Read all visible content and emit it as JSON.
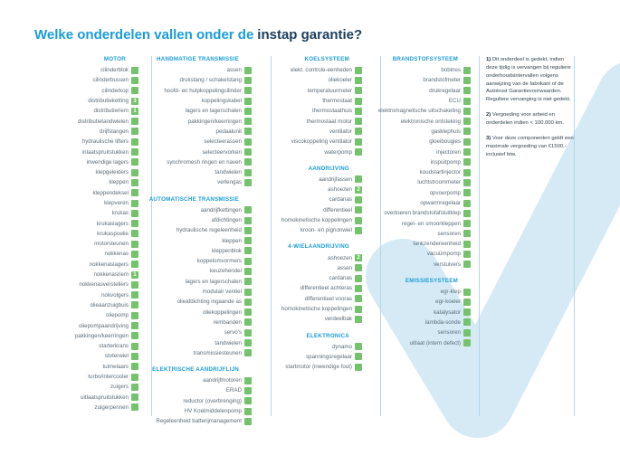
{
  "title": {
    "prefix": "Welke onderdelen vallen onder de",
    "highlight": "instap garantie?"
  },
  "colors": {
    "accent_blue": "#1b9cd8",
    "title_dark": "#1c3e5e",
    "covered_green": "#74c36c",
    "divider_blue": "#b5d7e8",
    "watermark_blue": "#d5eaf5",
    "item_text": "#5b6e7a"
  },
  "columns": [
    {
      "sections": [
        {
          "title": "MOTOR",
          "items": [
            {
              "label": "cilinderblok"
            },
            {
              "label": "cilinderbussen"
            },
            {
              "label": "cilinderkop"
            },
            {
              "label": "distributieketting",
              "note": "3"
            },
            {
              "label": "distributieriem",
              "note": "1"
            },
            {
              "label": "distributietandwielen"
            },
            {
              "label": "drijfstangen"
            },
            {
              "label": "hydraulische lifters"
            },
            {
              "label": "inlaatspruitstukken"
            },
            {
              "label": "inwendige lagers"
            },
            {
              "label": "klepgeleiders"
            },
            {
              "label": "kleppen"
            },
            {
              "label": "kleppendeksel"
            },
            {
              "label": "klepveren"
            },
            {
              "label": "krukas"
            },
            {
              "label": "krukaslagers"
            },
            {
              "label": "krukaspoelie"
            },
            {
              "label": "motorsteunen"
            },
            {
              "label": "nokkenas"
            },
            {
              "label": "nokkenaslagers"
            },
            {
              "label": "nokkenasriem",
              "note": "1"
            },
            {
              "label": "nokkenasverstellers"
            },
            {
              "label": "nokvolgers"
            },
            {
              "label": "olieaanzuigbuis"
            },
            {
              "label": "oliepomp"
            },
            {
              "label": "oliepompaandrijving"
            },
            {
              "label": "pakkingen/keerringen"
            },
            {
              "label": "starterkrans"
            },
            {
              "label": "stoterwiel"
            },
            {
              "label": "tuimelaars"
            },
            {
              "label": "turbo/intercooler"
            },
            {
              "label": "zuigers"
            },
            {
              "label": "uitlaatspruitstukken"
            },
            {
              "label": "zuigerpennen"
            }
          ]
        }
      ]
    },
    {
      "sections": [
        {
          "title": "HANDMATIGE TRANSMISSIE",
          "items": [
            {
              "label": "assen"
            },
            {
              "label": "drukstang / schakelstang"
            },
            {
              "label": "hoofd- en hulpkoppelingcilinder"
            },
            {
              "label": "koppelingskabel"
            },
            {
              "label": "lagers en lagerschalen"
            },
            {
              "label": "pakkingen/keerringen"
            },
            {
              "label": "pedaalunit"
            },
            {
              "label": "selecteerassen"
            },
            {
              "label": "selecteervorken"
            },
            {
              "label": "synchromesh ringen en naven"
            },
            {
              "label": "tandwielen"
            },
            {
              "label": "verlengas"
            }
          ]
        },
        {
          "title": "AUTOMATISCHE TRANSMISSIE",
          "items": [
            {
              "label": "aandrijfkettingen"
            },
            {
              "label": "afdichtingen"
            },
            {
              "label": "hydraulische regeleenheid"
            },
            {
              "label": "kleppen"
            },
            {
              "label": "kleppenblok"
            },
            {
              "label": "koppelomvormers"
            },
            {
              "label": "keuzehendel"
            },
            {
              "label": "lagers en lagerschalen"
            },
            {
              "label": "modulair ventiel"
            },
            {
              "label": "olieafdichting ingaande as"
            },
            {
              "label": "oliekoppelingen"
            },
            {
              "label": "rembanden"
            },
            {
              "label": "servo's"
            },
            {
              "label": "tandwielen"
            },
            {
              "label": "transmissiesteunen"
            }
          ]
        },
        {
          "title": "ELEKTRISCHE AANDRIJFLIJN",
          "items": [
            {
              "label": "aandrijfmotoren"
            },
            {
              "label": "ERAD"
            },
            {
              "label": "reductor (overbrenging)"
            },
            {
              "label": "HV Koelmiddelenpomp"
            },
            {
              "label": "Regeleenheid batterijmanagement"
            }
          ]
        }
      ]
    },
    {
      "sections": [
        {
          "title": "KOELSYSTEEM",
          "items": [
            {
              "label": "elekt. controle-eenheden"
            },
            {
              "label": "oliekoeler"
            },
            {
              "label": "temperatuurmeter"
            },
            {
              "label": "thermostaat"
            },
            {
              "label": "thermostaathuis"
            },
            {
              "label": "thermostaat motor"
            },
            {
              "label": "ventilator"
            },
            {
              "label": "viscokoppeling ventilator"
            },
            {
              "label": "waterpomp"
            }
          ]
        },
        {
          "title": "AANDRIJVING",
          "items": [
            {
              "label": "aandrijfassen"
            },
            {
              "label": "ashoezen",
              "note": "2"
            },
            {
              "label": "cardanas"
            },
            {
              "label": "differentieel"
            },
            {
              "label": "homokinetische koppelingen"
            },
            {
              "label": "kroon- en pignonwiel"
            }
          ]
        },
        {
          "title": "4-WIELAANDRIJVING",
          "items": [
            {
              "label": "ashoezen",
              "note": "2"
            },
            {
              "label": "assen"
            },
            {
              "label": "cardanas"
            },
            {
              "label": "differentieel achteras"
            },
            {
              "label": "differentieel vooras"
            },
            {
              "label": "homokinetische koppelingen"
            },
            {
              "label": "verdeelbak"
            }
          ]
        },
        {
          "title": "ELEKTRONICA",
          "items": [
            {
              "label": "dynamo"
            },
            {
              "label": "spanningsregelaar"
            },
            {
              "label": "startmotor (inwendige fout)"
            }
          ]
        }
      ]
    },
    {
      "sections": [
        {
          "title": "BRANDSTOFSYSTEEM",
          "items": [
            {
              "label": "bobines"
            },
            {
              "label": "brandstofmeter"
            },
            {
              "label": "drukregelaar"
            },
            {
              "label": "ECU"
            },
            {
              "label": "elektromagnetische uitschakeling"
            },
            {
              "label": "elektronische ontsteking"
            },
            {
              "label": "gasklephuis"
            },
            {
              "label": "gloeibougies"
            },
            {
              "label": "injectoren"
            },
            {
              "label": "inspuitpomp"
            },
            {
              "label": "koudstartinjector"
            },
            {
              "label": "luchtstroommeter"
            },
            {
              "label": "opvoerpomp"
            },
            {
              "label": "opwarmregelaar"
            },
            {
              "label": "overtoeren brandstofafsluitklep"
            },
            {
              "label": "regel- en smoorkleppen"
            },
            {
              "label": "sensoren"
            },
            {
              "label": "tankzendereenheid"
            },
            {
              "label": "vacuümpomp"
            },
            {
              "label": "verstuivers"
            }
          ]
        },
        {
          "title": "EMISSIESYSTEEM",
          "items": [
            {
              "label": "egr-klep"
            },
            {
              "label": "egr-koeler"
            },
            {
              "label": "katalysator"
            },
            {
              "label": "lambda-sonde"
            },
            {
              "label": "sensoren"
            },
            {
              "label": "uitlaat (intern defect)"
            }
          ]
        }
      ]
    }
  ],
  "notes": [
    {
      "num": "1)",
      "text": "Dit onderdeel is gedekt, indien deze tijdig is vervangen bij reguliere onderhoudsintervallen volgens aanwijzing van de fabrikant of de Autotrust Garantievoorwaarden. Reguliere vervanging is niet gedekt."
    },
    {
      "num": "2)",
      "text": "Vergoeding voor arbeid en onderdelen indien < 100.000 km."
    },
    {
      "num": "3)",
      "text": "Voor deze componenten geldt een maximale vergoeding van €1500,- inclusief btw."
    }
  ]
}
